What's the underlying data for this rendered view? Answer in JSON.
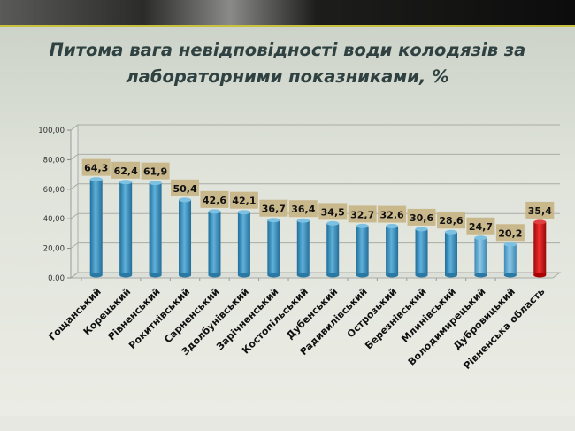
{
  "title_line1": "Питома вага невідповідності води колодязів за",
  "title_line2": "лабораторними показниками, %",
  "chart_data": {
    "type": "bar",
    "title": "Питома вага невідповідності води колодязів за лабораторними показниками, %",
    "xlabel": "",
    "ylabel": "",
    "ylim": [
      0,
      100
    ],
    "yticks": [
      "0,00",
      "20,00",
      "40,00",
      "60,00",
      "80,00",
      "100,00"
    ],
    "grid": true,
    "categories": [
      "Гощанський",
      "Корецький",
      "Рівненський",
      "Рокитнівський",
      "Сарненський",
      "Здолбунівський",
      "Зарічненський",
      "Костопільський",
      "Дубенський",
      "Радивилівський",
      "Острозький",
      "Березнівський",
      "Млинівський",
      "Володимирецький",
      "Дубровицький",
      "Рівненська область"
    ],
    "values": [
      64.3,
      62.4,
      61.9,
      50.4,
      42.6,
      42.1,
      36.7,
      36.4,
      34.5,
      32.7,
      32.6,
      30.6,
      28.6,
      24.7,
      20.2,
      35.4
    ],
    "data_labels": [
      "64,3",
      "62,4",
      "61,9",
      "50,4",
      "42,6",
      "42,1",
      "36,7",
      "36,4",
      "34,5",
      "32,7",
      "32,6",
      "30,6",
      "28,6",
      "24,7",
      "20,2",
      "35,4"
    ],
    "colors": {
      "bar": "#3d90bd",
      "bar_light": "#5aaad2",
      "highlight": "#d01010",
      "label_bg": "#c9b88c"
    }
  }
}
